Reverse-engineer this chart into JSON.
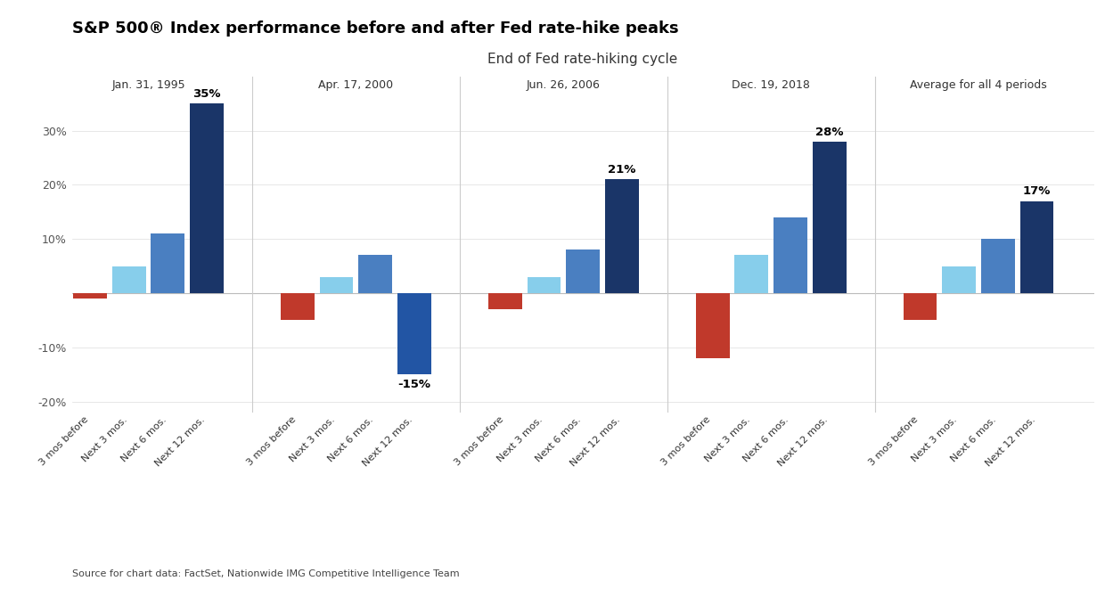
{
  "title": "S&P 500® Index performance before and after Fed rate-hike peaks",
  "subtitle": "End of Fed rate-hiking cycle",
  "source": "Source for chart data: FactSet, Nationwide IMG Competitive Intelligence Team",
  "periods": [
    "Jan. 31, 1995",
    "Apr. 17, 2000",
    "Jun. 26, 2006",
    "Dec. 19, 2018",
    "Average for all 4 periods"
  ],
  "categories": [
    "3 mos before",
    "Next 3 mos.",
    "Next 6 mos.",
    "Next 12 mos."
  ],
  "values": [
    [
      -1.0,
      5.0,
      11.0,
      35.0
    ],
    [
      -5.0,
      3.0,
      7.0,
      -15.0
    ],
    [
      -3.0,
      3.0,
      8.0,
      21.0
    ],
    [
      -12.0,
      7.0,
      14.0,
      28.0
    ],
    [
      -5.0,
      5.0,
      10.0,
      17.0
    ]
  ],
  "color_before": "#c0392b",
  "color_next3": "#87ceeb",
  "color_next6": "#4a7fc1",
  "color_next12_pos": "#1a3568",
  "color_next12_neg": "#2255a4",
  "labeled_bars": [
    [
      0,
      3,
      "35%"
    ],
    [
      1,
      3,
      "-15%"
    ],
    [
      2,
      3,
      "21%"
    ],
    [
      3,
      3,
      "28%"
    ],
    [
      4,
      3,
      "17%"
    ]
  ],
  "ylim": [
    -22,
    40
  ],
  "ytick_vals": [
    -20,
    -10,
    0,
    10,
    20,
    30
  ],
  "ytick_labels": [
    "-20%",
    "-10%",
    "",
    "10%",
    "20%",
    "30%"
  ],
  "bg_color": "#ffffff",
  "subtitle_bg": "#e8e8e8",
  "grid_color": "#dddddd",
  "divider_color": "#cccccc"
}
